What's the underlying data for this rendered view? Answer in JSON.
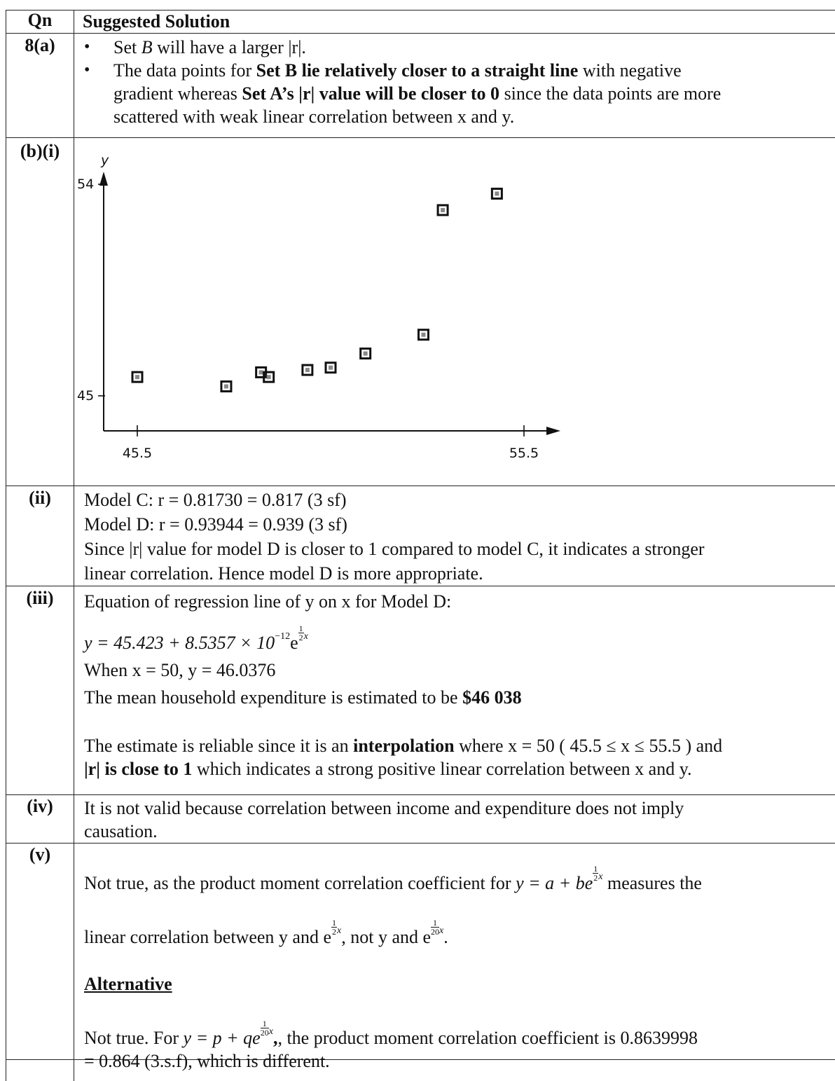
{
  "header": {
    "qn": "Qn",
    "solution": "Suggested Solution"
  },
  "part_a": {
    "label": "8(a)",
    "bullet1_pre": "Set ",
    "bullet1_var": "B",
    "bullet1_post": " will have a larger |r|.",
    "b2_l1_pre": "The data points for ",
    "b2_l1_bold": "Set B lie relatively closer to a straight line",
    "b2_l1_post": " with negative",
    "b2_l2_pre": "gradient whereas ",
    "b2_l2_bold": "Set A’s |r| value will be closer to 0",
    "b2_l2_post": " since the data points are more",
    "b2_l3": "scattered with weak linear correlation between x and y."
  },
  "part_bi": {
    "label": "(b)(i)"
  },
  "chart_data": {
    "type": "scatter",
    "xlabel": "",
    "ylabel": "y",
    "x_ticks": [
      "45.5",
      "55.5"
    ],
    "y_ticks": [
      "45",
      "54"
    ],
    "xlim": [
      45.5,
      55.5
    ],
    "ylim": [
      45,
      54
    ],
    "marker": "hollow-square",
    "points": [
      {
        "x": 45.5,
        "y": 45.8
      },
      {
        "x": 47.8,
        "y": 45.4
      },
      {
        "x": 48.7,
        "y": 46.0
      },
      {
        "x": 48.9,
        "y": 45.8
      },
      {
        "x": 49.9,
        "y": 46.1
      },
      {
        "x": 50.5,
        "y": 46.2
      },
      {
        "x": 51.4,
        "y": 46.8
      },
      {
        "x": 52.9,
        "y": 47.6
      },
      {
        "x": 53.4,
        "y": 52.9
      },
      {
        "x": 54.8,
        "y": 53.6
      }
    ]
  },
  "part_ii": {
    "label": "(ii)",
    "l1": "Model C: r = 0.81730 = 0.817 (3 sf)",
    "l2": "Model D: r = 0.93944 = 0.939 (3 sf)",
    "l3": "Since |r| value for model D is closer to 1 compared to model C, it indicates a stronger",
    "l4": "linear correlation. Hence model D is more appropriate."
  },
  "part_iii": {
    "label": "(iii)",
    "l1": "Equation of regression line of y on x for Model D:",
    "eq_main": "y = 45.423 + 8.5357 × 10",
    "eq_exp": "−12",
    "eq_e": "e",
    "frac_num": "1",
    "frac_den": "2",
    "frac_var": "x",
    "l3": "When x = 50, y = 46.0376",
    "l4_pre": "The mean household expenditure is estimated to be ",
    "l4_bold": "$46 038",
    "l5_pre": "The estimate is reliable since it is an ",
    "l5_bold": "interpolation",
    "l5_post": " where x = 50 ( 45.5 ≤ x ≤ 55.5 ) and",
    "l6_bold": "|r| is close to 1",
    "l6_post": " which indicates a strong positive linear correlation between x and y."
  },
  "part_iv": {
    "label": "(iv)",
    "l1": "It is not valid because correlation between income and expenditure does not imply",
    "l2": "causation."
  },
  "part_v": {
    "label": "(v)",
    "l1_pre": "Not true, as the product moment correlation coefficient for ",
    "l1_eq": "y = a + be",
    "l1_post": " measures the",
    "l2_pre": "linear correlation between y and ",
    "l2_e": "e",
    "l2_mid": ", not y and ",
    "l2_e2": "e",
    "l2_post": ".",
    "alt_heading": "Alternative",
    "alt_l1_pre": "Not true. For ",
    "alt_l1_eq": "y = p + qe",
    "alt_l1_post": ", the product moment correlation coefficient is 0.8639998",
    "alt_l2": "= 0.864 (3.s.f), which is different.",
    "half_num": "1",
    "half_den": "2",
    "twenty_den": "20",
    "var_x": "x"
  }
}
